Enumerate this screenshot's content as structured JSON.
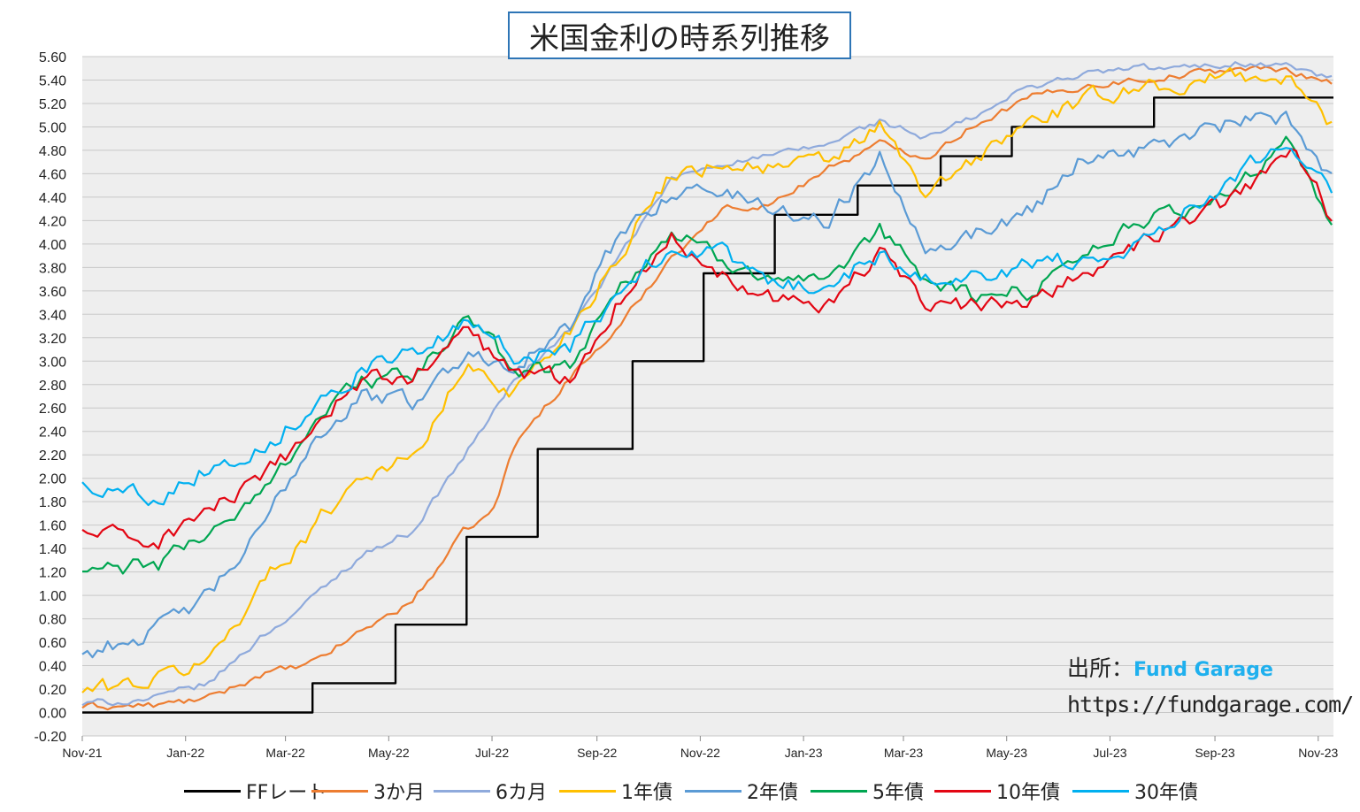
{
  "chart_data": {
    "type": "line",
    "title": "米国金利の時系列推移",
    "ylim": [
      -0.2,
      5.6
    ],
    "y_ticks": [
      "5.60",
      "5.40",
      "5.20",
      "5.00",
      "4.80",
      "4.60",
      "4.40",
      "4.20",
      "4.00",
      "3.80",
      "3.60",
      "3.40",
      "3.20",
      "3.00",
      "2.80",
      "2.60",
      "2.40",
      "2.20",
      "2.00",
      "1.80",
      "1.60",
      "1.40",
      "1.20",
      "1.00",
      "0.80",
      "0.60",
      "0.40",
      "0.20",
      "0.00",
      "-0.20"
    ],
    "x_ticks": [
      "Nov-21",
      "Jan-22",
      "Mar-22",
      "May-22",
      "Jul-22",
      "Sep-22",
      "Nov-22",
      "Jan-23",
      "Mar-23",
      "May-23",
      "Jul-23",
      "Sep-23",
      "Nov-23"
    ],
    "xlim": [
      "2021-11-01",
      "2023-11-10"
    ],
    "grid": true,
    "legend_position": "bottom",
    "series": [
      {
        "name": "FFレート",
        "color": "#000000",
        "step": true,
        "points": [
          [
            "2021-11-01",
            0.0
          ],
          [
            "2022-03-17",
            0.25
          ],
          [
            "2022-05-05",
            0.75
          ],
          [
            "2022-06-16",
            1.5
          ],
          [
            "2022-07-28",
            2.25
          ],
          [
            "2022-09-22",
            3.0
          ],
          [
            "2022-11-03",
            3.75
          ],
          [
            "2022-12-15",
            4.25
          ],
          [
            "2023-02-02",
            4.5
          ],
          [
            "2023-03-23",
            4.75
          ],
          [
            "2023-05-04",
            5.0
          ],
          [
            "2023-07-27",
            5.25
          ],
          [
            "2023-11-10",
            5.25
          ]
        ]
      },
      {
        "name": "3か月",
        "color": "#ed7d31",
        "points": [
          [
            "2021-11-01",
            0.05
          ],
          [
            "2021-12-15",
            0.06
          ],
          [
            "2022-01-15",
            0.12
          ],
          [
            "2022-02-15",
            0.33
          ],
          [
            "2022-03-15",
            0.4
          ],
          [
            "2022-04-15",
            0.7
          ],
          [
            "2022-05-15",
            0.95
          ],
          [
            "2022-06-15",
            1.55
          ],
          [
            "2022-07-01",
            1.7
          ],
          [
            "2022-07-15",
            2.3
          ],
          [
            "2022-08-15",
            2.85
          ],
          [
            "2022-09-15",
            3.3
          ],
          [
            "2022-10-15",
            3.9
          ],
          [
            "2022-11-15",
            4.3
          ],
          [
            "2022-12-15",
            4.35
          ],
          [
            "2023-01-15",
            4.65
          ],
          [
            "2023-02-15",
            4.85
          ],
          [
            "2023-03-15",
            4.75
          ],
          [
            "2023-04-15",
            5.05
          ],
          [
            "2023-05-15",
            5.25
          ],
          [
            "2023-06-15",
            5.35
          ],
          [
            "2023-07-15",
            5.4
          ],
          [
            "2023-08-15",
            5.45
          ],
          [
            "2023-09-15",
            5.5
          ],
          [
            "2023-10-15",
            5.48
          ],
          [
            "2023-11-10",
            5.38
          ]
        ]
      },
      {
        "name": "6カ月",
        "color": "#8faadc",
        "points": [
          [
            "2021-11-01",
            0.07
          ],
          [
            "2021-12-15",
            0.12
          ],
          [
            "2022-01-15",
            0.25
          ],
          [
            "2022-02-15",
            0.65
          ],
          [
            "2022-03-15",
            0.95
          ],
          [
            "2022-04-15",
            1.35
          ],
          [
            "2022-05-15",
            1.55
          ],
          [
            "2022-06-15",
            2.2
          ],
          [
            "2022-07-15",
            2.85
          ],
          [
            "2022-08-15",
            3.25
          ],
          [
            "2022-09-15",
            3.9
          ],
          [
            "2022-10-15",
            4.55
          ],
          [
            "2022-11-15",
            4.7
          ],
          [
            "2022-12-15",
            4.75
          ],
          [
            "2023-01-15",
            4.85
          ],
          [
            "2023-02-15",
            5.05
          ],
          [
            "2023-03-15",
            4.9
          ],
          [
            "2023-04-15",
            5.1
          ],
          [
            "2023-05-15",
            5.35
          ],
          [
            "2023-06-15",
            5.45
          ],
          [
            "2023-07-15",
            5.5
          ],
          [
            "2023-08-15",
            5.5
          ],
          [
            "2023-09-15",
            5.55
          ],
          [
            "2023-10-15",
            5.52
          ],
          [
            "2023-11-10",
            5.4
          ]
        ]
      },
      {
        "name": "1年債",
        "color": "#ffc000",
        "points": [
          [
            "2021-11-01",
            0.18
          ],
          [
            "2021-12-15",
            0.28
          ],
          [
            "2022-01-15",
            0.45
          ],
          [
            "2022-02-15",
            1.1
          ],
          [
            "2022-03-15",
            1.55
          ],
          [
            "2022-04-15",
            2.05
          ],
          [
            "2022-05-15",
            2.15
          ],
          [
            "2022-06-15",
            2.95
          ],
          [
            "2022-07-15",
            2.75
          ],
          [
            "2022-08-15",
            3.25
          ],
          [
            "2022-09-15",
            3.95
          ],
          [
            "2022-10-15",
            4.6
          ],
          [
            "2022-11-15",
            4.7
          ],
          [
            "2022-12-15",
            4.65
          ],
          [
            "2023-01-15",
            4.7
          ],
          [
            "2023-02-15",
            5.0
          ],
          [
            "2023-03-15",
            4.4
          ],
          [
            "2023-04-15",
            4.75
          ],
          [
            "2023-05-15",
            5.05
          ],
          [
            "2023-06-15",
            5.2
          ],
          [
            "2023-07-15",
            5.35
          ],
          [
            "2023-08-15",
            5.35
          ],
          [
            "2023-09-15",
            5.45
          ],
          [
            "2023-10-15",
            5.4
          ],
          [
            "2023-11-10",
            5.0
          ]
        ]
      },
      {
        "name": "2年債",
        "color": "#5b9bd5",
        "points": [
          [
            "2021-11-01",
            0.5
          ],
          [
            "2021-12-15",
            0.7
          ],
          [
            "2022-01-15",
            1.0
          ],
          [
            "2022-02-15",
            1.55
          ],
          [
            "2022-03-15",
            2.3
          ],
          [
            "2022-04-15",
            2.7
          ],
          [
            "2022-05-15",
            2.65
          ],
          [
            "2022-06-15",
            3.05
          ],
          [
            "2022-07-15",
            3.0
          ],
          [
            "2022-08-15",
            3.25
          ],
          [
            "2022-09-15",
            4.1
          ],
          [
            "2022-10-15",
            4.45
          ],
          [
            "2022-11-15",
            4.45
          ],
          [
            "2022-12-15",
            4.3
          ],
          [
            "2023-01-15",
            4.2
          ],
          [
            "2023-02-15",
            4.75
          ],
          [
            "2023-03-15",
            4.0
          ],
          [
            "2023-04-15",
            4.1
          ],
          [
            "2023-05-15",
            4.3
          ],
          [
            "2023-06-15",
            4.75
          ],
          [
            "2023-07-15",
            4.8
          ],
          [
            "2023-08-15",
            4.9
          ],
          [
            "2023-09-15",
            5.05
          ],
          [
            "2023-10-15",
            5.05
          ],
          [
            "2023-11-10",
            4.55
          ]
        ]
      },
      {
        "name": "5年債",
        "color": "#00a651",
        "points": [
          [
            "2021-11-01",
            1.2
          ],
          [
            "2021-12-15",
            1.25
          ],
          [
            "2022-01-15",
            1.55
          ],
          [
            "2022-02-15",
            1.85
          ],
          [
            "2022-03-15",
            2.45
          ],
          [
            "2022-04-15",
            2.85
          ],
          [
            "2022-05-15",
            2.85
          ],
          [
            "2022-06-15",
            3.35
          ],
          [
            "2022-07-15",
            2.95
          ],
          [
            "2022-08-15",
            2.95
          ],
          [
            "2022-09-15",
            3.65
          ],
          [
            "2022-10-15",
            4.1
          ],
          [
            "2022-11-15",
            3.85
          ],
          [
            "2022-12-15",
            3.75
          ],
          [
            "2023-01-15",
            3.6
          ],
          [
            "2023-02-15",
            4.1
          ],
          [
            "2023-03-15",
            3.7
          ],
          [
            "2023-04-15",
            3.55
          ],
          [
            "2023-05-15",
            3.6
          ],
          [
            "2023-06-15",
            3.95
          ],
          [
            "2023-07-15",
            4.15
          ],
          [
            "2023-08-15",
            4.3
          ],
          [
            "2023-09-15",
            4.5
          ],
          [
            "2023-10-15",
            4.85
          ],
          [
            "2023-11-10",
            4.12
          ]
        ]
      },
      {
        "name": "10年債",
        "color": "#e30613",
        "points": [
          [
            "2021-11-01",
            1.55
          ],
          [
            "2021-12-15",
            1.45
          ],
          [
            "2022-01-15",
            1.75
          ],
          [
            "2022-02-15",
            1.95
          ],
          [
            "2022-03-15",
            2.4
          ],
          [
            "2022-04-15",
            2.85
          ],
          [
            "2022-05-15",
            2.85
          ],
          [
            "2022-06-15",
            3.25
          ],
          [
            "2022-07-15",
            2.9
          ],
          [
            "2022-08-15",
            2.85
          ],
          [
            "2022-09-15",
            3.55
          ],
          [
            "2022-10-15",
            4.05
          ],
          [
            "2022-11-15",
            3.75
          ],
          [
            "2022-12-15",
            3.55
          ],
          [
            "2023-01-15",
            3.5
          ],
          [
            "2023-02-15",
            3.9
          ],
          [
            "2023-03-15",
            3.5
          ],
          [
            "2023-04-15",
            3.45
          ],
          [
            "2023-05-15",
            3.55
          ],
          [
            "2023-06-15",
            3.75
          ],
          [
            "2023-07-15",
            3.95
          ],
          [
            "2023-08-15",
            4.2
          ],
          [
            "2023-09-15",
            4.4
          ],
          [
            "2023-10-15",
            4.85
          ],
          [
            "2023-11-10",
            4.2
          ]
        ]
      },
      {
        "name": "30年債",
        "color": "#00b0f0",
        "points": [
          [
            "2021-11-01",
            1.95
          ],
          [
            "2021-12-15",
            1.85
          ],
          [
            "2022-01-15",
            2.1
          ],
          [
            "2022-02-15",
            2.25
          ],
          [
            "2022-03-15",
            2.6
          ],
          [
            "2022-04-15",
            2.95
          ],
          [
            "2022-05-15",
            3.05
          ],
          [
            "2022-06-15",
            3.3
          ],
          [
            "2022-07-15",
            3.05
          ],
          [
            "2022-08-15",
            3.1
          ],
          [
            "2022-09-15",
            3.6
          ],
          [
            "2022-10-15",
            4.0
          ],
          [
            "2022-11-15",
            3.9
          ],
          [
            "2022-12-15",
            3.65
          ],
          [
            "2023-01-15",
            3.65
          ],
          [
            "2023-02-15",
            3.9
          ],
          [
            "2023-03-15",
            3.75
          ],
          [
            "2023-04-15",
            3.7
          ],
          [
            "2023-05-15",
            3.85
          ],
          [
            "2023-06-15",
            3.85
          ],
          [
            "2023-07-15",
            4.0
          ],
          [
            "2023-08-15",
            4.3
          ],
          [
            "2023-09-15",
            4.6
          ],
          [
            "2023-10-15",
            4.95
          ],
          [
            "2023-11-10",
            4.4
          ]
        ]
      }
    ]
  },
  "source": {
    "label": "出所：",
    "brand": "Fund Garage",
    "url": "https://fundgarage.com/"
  }
}
